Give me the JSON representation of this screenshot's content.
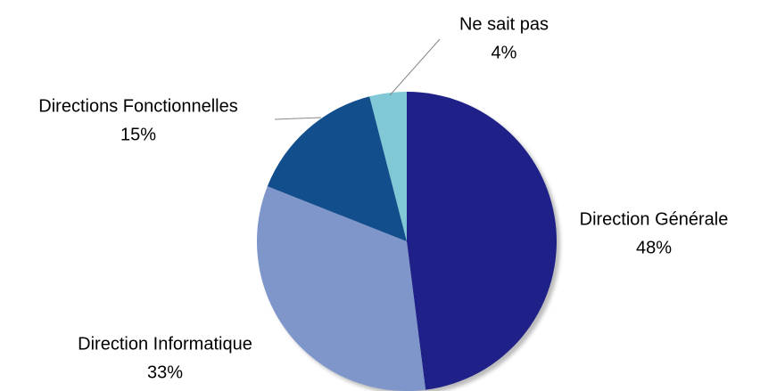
{
  "chart_data": {
    "type": "pie",
    "categories": [
      "Direction Générale",
      "Direction Informatique",
      "Directions Fonctionnelles",
      "Ne sait pas"
    ],
    "values": [
      48,
      33,
      15,
      4
    ],
    "value_labels": [
      "48%",
      "33%",
      "15%",
      "4%"
    ],
    "colors": [
      "#1f2088",
      "#7f96cb",
      "#124e8c",
      "#80c8d6"
    ]
  }
}
